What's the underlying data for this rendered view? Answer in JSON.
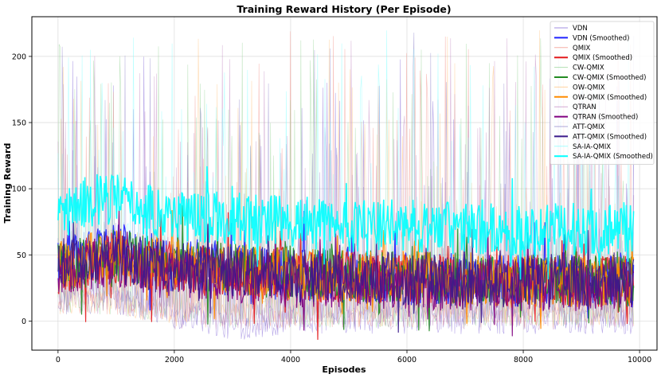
{
  "chart_data": {
    "type": "line",
    "title": "Training Reward History (Per Episode)",
    "xlabel": "Episodes",
    "ylabel": "Training Reward",
    "xlim": [
      -450,
      10300
    ],
    "ylim": [
      -22,
      230
    ],
    "xticks": [
      0,
      2000,
      4000,
      6000,
      8000,
      10000
    ],
    "yticks": [
      0,
      50,
      100,
      150,
      200
    ],
    "grid": true,
    "legend_position": "top-right",
    "episodes_max": 9900,
    "series": [
      {
        "name": "VDN",
        "color": "#7b5fd6",
        "kind": "raw",
        "points": [
          [
            0,
            20
          ],
          [
            500,
            25
          ],
          [
            1000,
            20
          ],
          [
            1500,
            15
          ],
          [
            2000,
            5
          ],
          [
            2500,
            0
          ],
          [
            3000,
            -5
          ],
          [
            4000,
            0
          ],
          [
            6000,
            0
          ],
          [
            8000,
            0
          ],
          [
            9900,
            0
          ]
        ],
        "peak_range": [
          60,
          220
        ]
      },
      {
        "name": "VDN (Smoothed)",
        "color": "#1f22ff",
        "kind": "smoothed",
        "points": [
          [
            0,
            45
          ],
          [
            500,
            48
          ],
          [
            1000,
            55
          ],
          [
            1500,
            48
          ],
          [
            2000,
            42
          ],
          [
            3000,
            38
          ],
          [
            4000,
            35
          ],
          [
            6000,
            32
          ],
          [
            8000,
            30
          ],
          [
            9900,
            30
          ]
        ]
      },
      {
        "name": "QMIX",
        "color": "#f28b82",
        "kind": "raw",
        "points": [
          [
            0,
            15
          ],
          [
            1000,
            15
          ],
          [
            2000,
            5
          ],
          [
            4000,
            5
          ],
          [
            6000,
            5
          ],
          [
            8000,
            5
          ],
          [
            9900,
            5
          ]
        ],
        "peak_range": [
          60,
          220
        ]
      },
      {
        "name": "QMIX (Smoothed)",
        "color": "#e41a1c",
        "kind": "smoothed",
        "points": [
          [
            0,
            40
          ],
          [
            1000,
            48
          ],
          [
            2000,
            40
          ],
          [
            4000,
            35
          ],
          [
            6000,
            32
          ],
          [
            8000,
            30
          ],
          [
            9900,
            30
          ]
        ]
      },
      {
        "name": "CW-QMIX",
        "color": "#8fd18f",
        "kind": "raw",
        "points": [
          [
            0,
            15
          ],
          [
            1000,
            15
          ],
          [
            2000,
            5
          ],
          [
            4000,
            5
          ],
          [
            6000,
            5
          ],
          [
            8000,
            5
          ],
          [
            9900,
            5
          ]
        ],
        "peak_range": [
          60,
          220
        ]
      },
      {
        "name": "CW-QMIX (Smoothed)",
        "color": "#228b22",
        "kind": "smoothed",
        "points": [
          [
            0,
            40
          ],
          [
            1000,
            50
          ],
          [
            2000,
            42
          ],
          [
            4000,
            36
          ],
          [
            6000,
            33
          ],
          [
            8000,
            31
          ],
          [
            9900,
            30
          ]
        ]
      },
      {
        "name": "OW-QMIX",
        "color": "#ffc078",
        "kind": "raw",
        "points": [
          [
            0,
            15
          ],
          [
            1000,
            15
          ],
          [
            2000,
            5
          ],
          [
            4000,
            5
          ],
          [
            6000,
            5
          ],
          [
            8000,
            5
          ],
          [
            9900,
            5
          ]
        ],
        "peak_range": [
          60,
          220
        ]
      },
      {
        "name": "OW-QMIX (Smoothed)",
        "color": "#ff8c00",
        "kind": "smoothed",
        "points": [
          [
            0,
            42
          ],
          [
            1000,
            50
          ],
          [
            2000,
            42
          ],
          [
            4000,
            36
          ],
          [
            6000,
            33
          ],
          [
            8000,
            31
          ],
          [
            9900,
            30
          ]
        ]
      },
      {
        "name": "QTRAN",
        "color": "#c084c0",
        "kind": "raw",
        "points": [
          [
            0,
            15
          ],
          [
            1000,
            15
          ],
          [
            2000,
            3
          ],
          [
            4000,
            3
          ],
          [
            6000,
            3
          ],
          [
            8000,
            3
          ],
          [
            9900,
            3
          ]
        ],
        "peak_range": [
          60,
          220
        ]
      },
      {
        "name": "QTRAN (Smoothed)",
        "color": "#800080",
        "kind": "smoothed",
        "points": [
          [
            0,
            40
          ],
          [
            1000,
            45
          ],
          [
            2000,
            35
          ],
          [
            4000,
            30
          ],
          [
            6000,
            28
          ],
          [
            8000,
            27
          ],
          [
            9900,
            27
          ]
        ]
      },
      {
        "name": "ATT-QMIX",
        "color": "#8a7fc8",
        "kind": "raw",
        "points": [
          [
            0,
            15
          ],
          [
            1000,
            15
          ],
          [
            2000,
            5
          ],
          [
            4000,
            5
          ],
          [
            6000,
            5
          ],
          [
            8000,
            5
          ],
          [
            9900,
            5
          ]
        ],
        "peak_range": [
          60,
          220
        ]
      },
      {
        "name": "ATT-QMIX (Smoothed)",
        "color": "#3a1a8c",
        "kind": "smoothed",
        "points": [
          [
            0,
            42
          ],
          [
            1000,
            48
          ],
          [
            2000,
            40
          ],
          [
            4000,
            35
          ],
          [
            6000,
            32
          ],
          [
            8000,
            30
          ],
          [
            9900,
            30
          ]
        ]
      },
      {
        "name": "SA-IA-QMIX",
        "color": "#7fffff",
        "kind": "raw",
        "points": [
          [
            0,
            40
          ],
          [
            1000,
            45
          ],
          [
            2000,
            40
          ],
          [
            4000,
            35
          ],
          [
            6000,
            35
          ],
          [
            8000,
            35
          ],
          [
            9900,
            35
          ]
        ],
        "peak_range": [
          100,
          220
        ]
      },
      {
        "name": "SA-IA-QMIX (Smoothed)",
        "color": "#00ffff",
        "kind": "smoothed",
        "points": [
          [
            0,
            80
          ],
          [
            500,
            90
          ],
          [
            1000,
            92
          ],
          [
            1500,
            85
          ],
          [
            2000,
            80
          ],
          [
            3000,
            78
          ],
          [
            4000,
            75
          ],
          [
            5000,
            72
          ],
          [
            6000,
            72
          ],
          [
            7000,
            70
          ],
          [
            8000,
            68
          ],
          [
            9000,
            70
          ],
          [
            9900,
            70
          ]
        ]
      }
    ]
  }
}
